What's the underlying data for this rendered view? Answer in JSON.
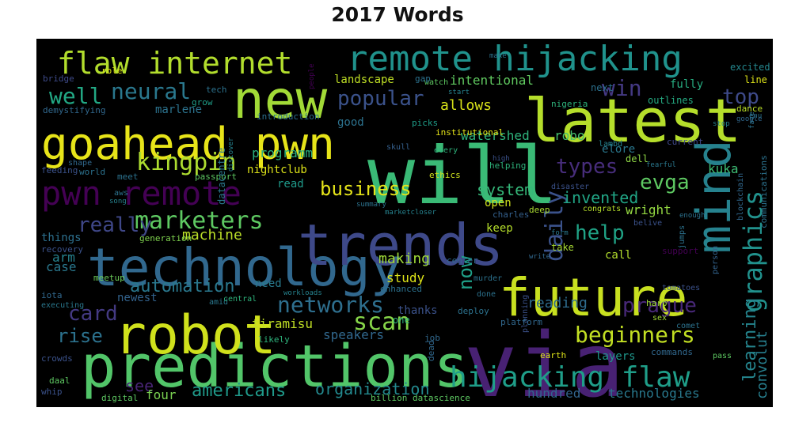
{
  "chart_data": {
    "type": "wordcloud",
    "title": "2017 Words",
    "colormap": "viridis",
    "background": "#000000",
    "words": [
      {
        "text": "via",
        "size": 112,
        "color": "#482173"
      },
      {
        "text": "will",
        "size": 100,
        "color": "#3aba76"
      },
      {
        "text": "latest",
        "size": 76,
        "color": "#b5de2b"
      },
      {
        "text": "predictions",
        "size": 74,
        "color": "#52c569"
      },
      {
        "text": "technology",
        "size": 66,
        "color": "#31688e"
      },
      {
        "text": "future",
        "size": 66,
        "color": "#c8e020"
      },
      {
        "text": "trends",
        "size": 72,
        "color": "#3e4989"
      },
      {
        "text": "robot",
        "size": 68,
        "color": "#d0e11c"
      },
      {
        "text": "goahead pwn",
        "size": 56,
        "color": "#e7e419"
      },
      {
        "text": "new",
        "size": 66,
        "color": "#a2da37"
      },
      {
        "text": "mind",
        "size": 60,
        "color": "#26828e"
      },
      {
        "text": "remote hijacking",
        "size": 44,
        "color": "#20928c"
      },
      {
        "text": "pwn remote",
        "size": 42,
        "color": "#440154"
      },
      {
        "text": "flaw internet",
        "size": 38,
        "color": "#b2dd2d"
      },
      {
        "text": "hijacking flaw",
        "size": 36,
        "color": "#1f9e89"
      },
      {
        "text": "graphics",
        "size": 32,
        "color": "#21918c"
      },
      {
        "text": "daily",
        "size": 30,
        "color": "#3b528b"
      },
      {
        "text": "neural",
        "size": 28,
        "color": "#2a788e"
      },
      {
        "text": "well",
        "size": 28,
        "color": "#22a884"
      },
      {
        "text": "kingpin",
        "size": 30,
        "color": "#addc30"
      },
      {
        "text": "marketers",
        "size": 30,
        "color": "#5ec962"
      },
      {
        "text": "really",
        "size": 26,
        "color": "#3f4788"
      },
      {
        "text": "networks",
        "size": 28,
        "color": "#2e6f8e"
      },
      {
        "text": "scan",
        "size": 30,
        "color": "#86d549"
      },
      {
        "text": "card",
        "size": 26,
        "color": "#443a83"
      },
      {
        "text": "rise",
        "size": 24,
        "color": "#2c728e"
      },
      {
        "text": "beginners",
        "size": 28,
        "color": "#c2df23"
      },
      {
        "text": "prague",
        "size": 26,
        "color": "#482878"
      },
      {
        "text": "popular",
        "size": 26,
        "color": "#3b528b"
      },
      {
        "text": "win",
        "size": 28,
        "color": "#443983"
      },
      {
        "text": "top",
        "size": 26,
        "color": "#3e4a89"
      },
      {
        "text": "types",
        "size": 26,
        "color": "#472d7b"
      },
      {
        "text": "evga",
        "size": 26,
        "color": "#5ec962"
      },
      {
        "text": "help",
        "size": 26,
        "color": "#20a386"
      },
      {
        "text": "business",
        "size": 24,
        "color": "#e5e419"
      },
      {
        "text": "system",
        "size": 20,
        "color": "#35b779"
      },
      {
        "text": "invented",
        "size": 20,
        "color": "#21a585"
      },
      {
        "text": "automation",
        "size": 22,
        "color": "#2a788e"
      },
      {
        "text": "americans",
        "size": 22,
        "color": "#1f9a8a"
      },
      {
        "text": "organization",
        "size": 20,
        "color": "#23898e"
      },
      {
        "text": "learning",
        "size": 22,
        "color": "#25858e"
      },
      {
        "text": "now",
        "size": 24,
        "color": "#1fa188"
      },
      {
        "text": "see",
        "size": 20,
        "color": "#482475"
      },
      {
        "text": "four",
        "size": 16,
        "color": "#7ad151"
      },
      {
        "text": "machine",
        "size": 18,
        "color": "#bade28"
      },
      {
        "text": "making",
        "size": 18,
        "color": "#a0da39"
      },
      {
        "text": "study",
        "size": 16,
        "color": "#dde318"
      },
      {
        "text": "reading",
        "size": 18,
        "color": "#2f6c8e"
      },
      {
        "text": "speakers",
        "size": 16,
        "color": "#31688e"
      },
      {
        "text": "tiramisu",
        "size": 16,
        "color": "#c0df25"
      },
      {
        "text": "convolut",
        "size": 18,
        "color": "#277f8e"
      },
      {
        "text": "hundred",
        "size": 16,
        "color": "#32658e"
      },
      {
        "text": "technologies",
        "size": 16,
        "color": "#29798e"
      },
      {
        "text": "intentional",
        "size": 16,
        "color": "#60ca60"
      },
      {
        "text": "allows",
        "size": 18,
        "color": "#d8e219"
      },
      {
        "text": "landscape",
        "size": 14,
        "color": "#bfdf25"
      },
      {
        "text": "watershed",
        "size": 16,
        "color": "#2eb37c"
      },
      {
        "text": "robo",
        "size": 16,
        "color": "#46c06f"
      },
      {
        "text": "wright",
        "size": 16,
        "color": "#93d741"
      },
      {
        "text": "kuka",
        "size": 16,
        "color": "#3dbc74"
      },
      {
        "text": "programm",
        "size": 16,
        "color": "#29af7f"
      },
      {
        "text": "nightclub",
        "size": 14,
        "color": "#dde318"
      },
      {
        "text": "marlene",
        "size": 14,
        "color": "#2c738e"
      },
      {
        "text": "good",
        "size": 14,
        "color": "#2c728e"
      },
      {
        "text": "read",
        "size": 14,
        "color": "#1f9a8a"
      },
      {
        "text": "open",
        "size": 14,
        "color": "#d0e11c"
      },
      {
        "text": "keep",
        "size": 14,
        "color": "#b5de2b"
      },
      {
        "text": "case",
        "size": 16,
        "color": "#2a788e"
      },
      {
        "text": "arm",
        "size": 16,
        "color": "#26828e"
      },
      {
        "text": "things",
        "size": 14,
        "color": "#2d708e"
      },
      {
        "text": "newest",
        "size": 14,
        "color": "#33638d"
      },
      {
        "text": "need",
        "size": 14,
        "color": "#297b8e"
      },
      {
        "text": "thanks",
        "size": 14,
        "color": "#3b528b"
      },
      {
        "text": "layers",
        "size": 14,
        "color": "#1f978b"
      },
      {
        "text": "call",
        "size": 14,
        "color": "#b2dd2d"
      },
      {
        "text": "take",
        "size": 12,
        "color": "#a8db34"
      },
      {
        "text": "elore",
        "size": 14,
        "color": "#2a788e"
      },
      {
        "text": "dell",
        "size": 12,
        "color": "#8ed645"
      },
      {
        "text": "fully",
        "size": 14,
        "color": "#27ad81"
      },
      {
        "text": "next",
        "size": 12,
        "color": "#2c718e"
      },
      {
        "text": "outlines",
        "size": 12,
        "color": "#25ab82"
      },
      {
        "text": "excited",
        "size": 12,
        "color": "#24878e"
      },
      {
        "text": "line",
        "size": 12,
        "color": "#dde318"
      },
      {
        "text": "dance",
        "size": 11,
        "color": "#bade28"
      },
      {
        "text": "current",
        "size": 11,
        "color": "#3f4889"
      },
      {
        "text": "ethics",
        "size": 11,
        "color": "#cde11d"
      },
      {
        "text": "helping",
        "size": 11,
        "color": "#2eb37c"
      },
      {
        "text": "deep",
        "size": 11,
        "color": "#aadc32"
      },
      {
        "text": "charles",
        "size": 11,
        "color": "#34608d"
      },
      {
        "text": "generation",
        "size": 11,
        "color": "#7fd34e"
      },
      {
        "text": "recovery",
        "size": 11,
        "color": "#3b528b"
      },
      {
        "text": "meetup",
        "size": 11,
        "color": "#6ccd5a"
      },
      {
        "text": "bridge",
        "size": 11,
        "color": "#3e4a89"
      },
      {
        "text": "role",
        "size": 11,
        "color": "#dde318"
      },
      {
        "text": "tech",
        "size": 11,
        "color": "#2c728e"
      },
      {
        "text": "introduction",
        "size": 11,
        "color": "#2d708e"
      },
      {
        "text": "picks",
        "size": 11,
        "color": "#1f9e89"
      },
      {
        "text": "institutional",
        "size": 11,
        "color": "#e5e419"
      },
      {
        "text": "nigeria",
        "size": 11,
        "color": "#2eb37c"
      },
      {
        "text": "demystifying",
        "size": 11,
        "color": "#31688e"
      },
      {
        "text": "grow",
        "size": 11,
        "color": "#1f9e89"
      },
      {
        "text": "watch",
        "size": 10,
        "color": "#5ec962"
      },
      {
        "text": "gap",
        "size": 11,
        "color": "#2c728e"
      },
      {
        "text": "skull",
        "size": 10,
        "color": "#35608d"
      },
      {
        "text": "every",
        "size": 10,
        "color": "#2eb37c"
      },
      {
        "text": "lambd",
        "size": 10,
        "color": "#26828e"
      },
      {
        "text": "disaster",
        "size": 10,
        "color": "#3b528b"
      },
      {
        "text": "congrats",
        "size": 10,
        "color": "#b5de2b"
      },
      {
        "text": "belive",
        "size": 10,
        "color": "#3b528b"
      },
      {
        "text": "enough",
        "size": 9,
        "color": "#2c728e"
      },
      {
        "text": "blockchain",
        "size": 10,
        "color": "#31688e"
      },
      {
        "text": "communications",
        "size": 11,
        "color": "#2c728e"
      },
      {
        "text": "support",
        "size": 11,
        "color": "#440154"
      },
      {
        "text": "form",
        "size": 9,
        "color": "#2a788e"
      },
      {
        "text": "write",
        "size": 9,
        "color": "#31688e"
      },
      {
        "text": "person",
        "size": 10,
        "color": "#33638d"
      },
      {
        "text": "jumps",
        "size": 10,
        "color": "#2c728e"
      },
      {
        "text": "tomatoes",
        "size": 10,
        "color": "#3b528b"
      },
      {
        "text": "harp",
        "size": 11,
        "color": "#a0da39"
      },
      {
        "text": "sex",
        "size": 10,
        "color": "#a2da37"
      },
      {
        "text": "comet",
        "size": 10,
        "color": "#2c728e"
      },
      {
        "text": "commands",
        "size": 11,
        "color": "#31688e"
      },
      {
        "text": "pass",
        "size": 10,
        "color": "#5ec962"
      },
      {
        "text": "earth",
        "size": 11,
        "color": "#dde318"
      },
      {
        "text": "planning",
        "size": 10,
        "color": "#3b528b"
      },
      {
        "text": "platform",
        "size": 11,
        "color": "#31688e"
      },
      {
        "text": "deploy",
        "size": 11,
        "color": "#2c728e"
      },
      {
        "text": "done",
        "size": 10,
        "color": "#2c728e"
      },
      {
        "text": "murder",
        "size": 10,
        "color": "#2c728e"
      },
      {
        "text": "center",
        "size": 11,
        "color": "#31688e"
      },
      {
        "text": "enhanced",
        "size": 11,
        "color": "#2c728e"
      },
      {
        "text": "job",
        "size": 11,
        "color": "#31688e"
      },
      {
        "text": "one",
        "size": 12,
        "color": "#2eb37c"
      },
      {
        "text": "dead",
        "size": 11,
        "color": "#31688e"
      },
      {
        "text": "billion datascience",
        "size": 11,
        "color": "#5ec962"
      },
      {
        "text": "digital",
        "size": 11,
        "color": "#5ec962"
      },
      {
        "text": "whip",
        "size": 11,
        "color": "#3b528b"
      },
      {
        "text": "daal",
        "size": 11,
        "color": "#5ec962"
      },
      {
        "text": "crowds",
        "size": 11,
        "color": "#3b528b"
      },
      {
        "text": "iota",
        "size": 11,
        "color": "#31688e"
      },
      {
        "text": "executing",
        "size": 10,
        "color": "#2a788e"
      },
      {
        "text": "likely",
        "size": 11,
        "color": "#2eb37c"
      },
      {
        "text": "amid",
        "size": 10,
        "color": "#2a788e"
      },
      {
        "text": "central",
        "size": 10,
        "color": "#2eb37c"
      },
      {
        "text": "workloads",
        "size": 9,
        "color": "#26828e"
      },
      {
        "text": "aws",
        "size": 10,
        "color": "#2c728e"
      },
      {
        "text": "song",
        "size": 9,
        "color": "#26828e"
      },
      {
        "text": "shape",
        "size": 10,
        "color": "#31688e"
      },
      {
        "text": "feeding",
        "size": 11,
        "color": "#3b528b"
      },
      {
        "text": "world",
        "size": 11,
        "color": "#2c728e"
      },
      {
        "text": "meet",
        "size": 11,
        "color": "#2c728e"
      },
      {
        "text": "passport",
        "size": 11,
        "color": "#5ec962"
      },
      {
        "text": "datacentre",
        "size": 12,
        "color": "#2a788e"
      },
      {
        "text": "discover",
        "size": 9,
        "color": "#26828e"
      },
      {
        "text": "summary",
        "size": 9,
        "color": "#2c728e"
      },
      {
        "text": "marketcloser",
        "size": 9,
        "color": "#26828e"
      },
      {
        "text": "make",
        "size": 9,
        "color": "#2c728e"
      },
      {
        "text": "start",
        "size": 9,
        "color": "#26828e"
      },
      {
        "text": "people",
        "size": 9,
        "color": "#440154"
      },
      {
        "text": "google",
        "size": 9,
        "color": "#31688e"
      },
      {
        "text": "stop",
        "size": 9,
        "color": "#26828e"
      },
      {
        "text": "face",
        "size": 9,
        "color": "#2c728e"
      },
      {
        "text": "enu",
        "size": 9,
        "color": "#2c728e"
      },
      {
        "text": "high",
        "size": 9,
        "color": "#3b528b"
      },
      {
        "text": "fearful",
        "size": 9,
        "color": "#2a788e"
      }
    ]
  }
}
